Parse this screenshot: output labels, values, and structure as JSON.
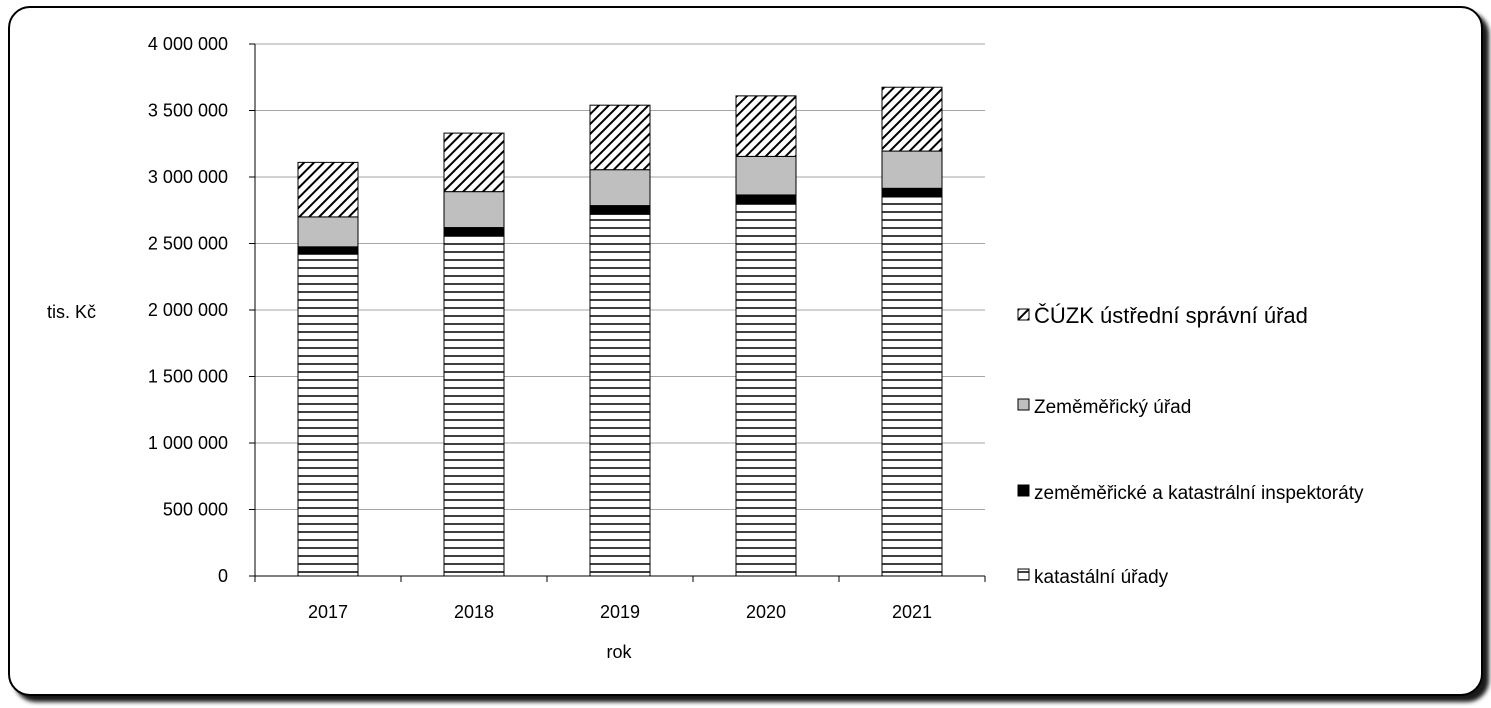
{
  "chart_data": {
    "type": "bar",
    "stacked": true,
    "categories": [
      "2017",
      "2018",
      "2019",
      "2020",
      "2021"
    ],
    "series": [
      {
        "name": "katastální úřady",
        "pattern": "horizontal-lines",
        "values": [
          2420000,
          2560000,
          2720000,
          2800000,
          2850000
        ]
      },
      {
        "name": "zeměměřické a katastrální inspektoráty",
        "pattern": "solid-black",
        "values": [
          55000,
          60000,
          65000,
          65000,
          65000
        ]
      },
      {
        "name": "Zeměměřický úřad",
        "pattern": "solid-gray",
        "values": [
          225000,
          270000,
          270000,
          290000,
          280000
        ]
      },
      {
        "name": "ČÚZK ústřední správní úřad",
        "pattern": "diagonal-hatch",
        "values": [
          410000,
          440000,
          485000,
          455000,
          480000
        ]
      }
    ],
    "yticks": [
      "0",
      "500 000",
      "1 000 000",
      "1 500 000",
      "2 000 000",
      "2 500 000",
      "3 000 000",
      "3 500 000",
      "4 000 000"
    ],
    "ylim": [
      0,
      4000000
    ],
    "xlabel": "rok",
    "ylabel": "tis. Kč",
    "grid": true,
    "legend_position": "right"
  }
}
